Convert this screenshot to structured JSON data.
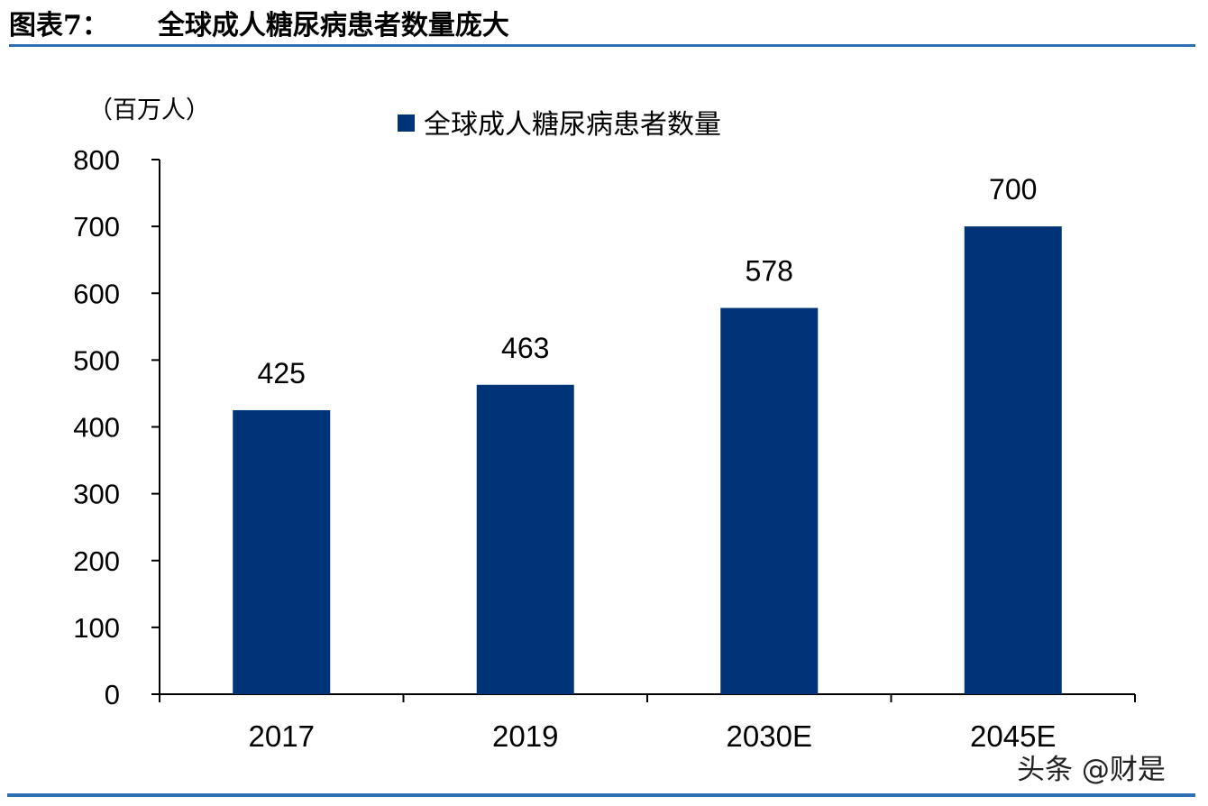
{
  "header": {
    "figure_no": "图表7：",
    "title": "全球成人糖尿病患者数量庞大"
  },
  "watermark": "头条 @财是",
  "colors": {
    "bar": "#003479",
    "rule": "#2e6fb4"
  },
  "chart_data": {
    "type": "bar",
    "title": "全球成人糖尿病患者数量庞大",
    "unit_label": "（百万人）",
    "categories": [
      "2017",
      "2019",
      "2030E",
      "2045E"
    ],
    "series": [
      {
        "name": "全球成人糖尿病患者数量",
        "values": [
          425,
          463,
          578,
          700
        ],
        "color": "#003479"
      }
    ],
    "data_labels": [
      "425",
      "463",
      "578",
      "700"
    ],
    "yticks": [
      "0",
      "100",
      "200",
      "300",
      "400",
      "500",
      "600",
      "700",
      "800"
    ],
    "ylim": [
      0,
      800
    ],
    "grid": false,
    "legend": "top-center"
  }
}
